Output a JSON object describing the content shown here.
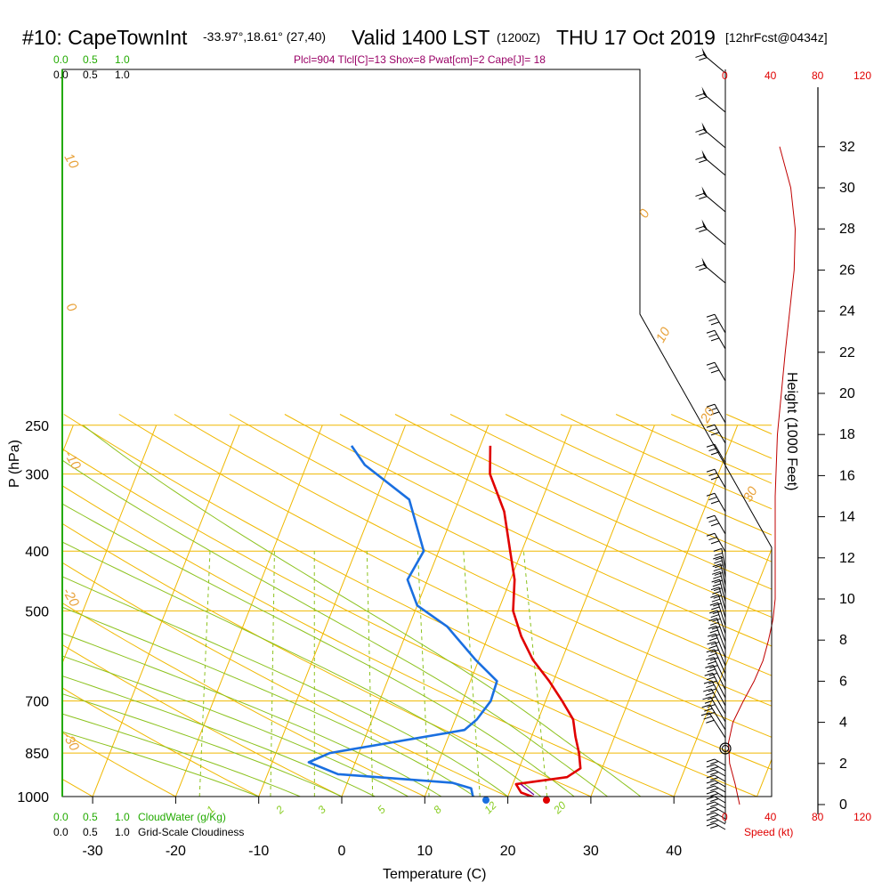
{
  "header": {
    "station": "#10: CapeTownInt",
    "coords": "-33.97°,18.61° (27,40)",
    "valid": "Valid 1400 LST",
    "zulu": "(1200Z)",
    "date": "THU 17 Oct 2019",
    "forecast": "[12hrFcst@0434z]",
    "indices": "Plcl=904 Tlcl[C]=13 Shox=8 Pwat[cm]=2 Cape[J]= 18"
  },
  "cloud_scale": {
    "green_ticks": [
      "0.0",
      "0.5",
      "1.0"
    ],
    "black_ticks": [
      "0.0",
      "0.5",
      "1.0"
    ],
    "cloudwater_label": "CloudWater (g/Kg)",
    "cloudiness_label": "Grid-Scale Cloudiness"
  },
  "speed_scale": {
    "ticks": [
      "0",
      "40",
      "80",
      "120"
    ],
    "label": "Speed (kt)"
  },
  "colors": {
    "isobar": "#f0b800",
    "isotherm": "#f0b800",
    "dry_adiabat": "#f0b800",
    "moist_adiabat": "#8cc21e",
    "mixing_ratio": "#8cc21e",
    "temperature": "#e00000",
    "dewpoint": "#1a6fe0",
    "wind_speed": "#c00000",
    "cloud_axis": "#22aa00"
  },
  "chart_data": {
    "type": "line",
    "title": "#10: CapeTownInt",
    "xlabel": "Temperature (C)",
    "ylabel": "P (hPa)",
    "y2label": "Height (1000 Feet)",
    "x_ticks": [
      -30,
      -20,
      -10,
      0,
      10,
      20,
      30,
      40
    ],
    "y_ticks": [
      250,
      300,
      400,
      500,
      700,
      850,
      1000
    ],
    "height_ticks": [
      0,
      2,
      4,
      6,
      8,
      10,
      12,
      14,
      16,
      18,
      20,
      22,
      24,
      26,
      28,
      30,
      32
    ],
    "isotherm_labels": [
      {
        "value": "10",
        "text": "10"
      },
      {
        "value": "0",
        "text": "0"
      },
      {
        "value": "-10",
        "text": "-10"
      },
      {
        "value": "-20",
        "text": "-20"
      },
      {
        "value": "-30",
        "text": "-30"
      },
      {
        "value": "0b",
        "text": "0"
      },
      {
        "value": "10b",
        "text": "10"
      },
      {
        "value": "20",
        "text": "20"
      },
      {
        "value": "30",
        "text": "30"
      }
    ],
    "mixing_ratio_labels": [
      "1",
      "2",
      "3",
      "5",
      "8",
      "12",
      "20"
    ],
    "series": [
      {
        "name": "Temperature",
        "points": [
          {
            "p": 270,
            "t": 1.2
          },
          {
            "p": 300,
            "t": 2.5
          },
          {
            "p": 345,
            "t": 6
          },
          {
            "p": 400,
            "t": 8.6
          },
          {
            "p": 445,
            "t": 10.5
          },
          {
            "p": 500,
            "t": 11.8
          },
          {
            "p": 550,
            "t": 14
          },
          {
            "p": 600,
            "t": 16.5
          },
          {
            "p": 650,
            "t": 19.5
          },
          {
            "p": 700,
            "t": 22
          },
          {
            "p": 750,
            "t": 24.2
          },
          {
            "p": 800,
            "t": 25.3
          },
          {
            "p": 850,
            "t": 26.5
          },
          {
            "p": 900,
            "t": 27.4
          },
          {
            "p": 930,
            "t": 26.2
          },
          {
            "p": 955,
            "t": 20.4
          },
          {
            "p": 985,
            "t": 21.4
          },
          {
            "p": 1005,
            "t": 23.4
          }
        ]
      },
      {
        "name": "Dewpoint",
        "points": [
          {
            "p": 270,
            "t": -15.5
          },
          {
            "p": 290,
            "t": -13
          },
          {
            "p": 330,
            "t": -6
          },
          {
            "p": 400,
            "t": -1.8
          },
          {
            "p": 445,
            "t": -2.4
          },
          {
            "p": 490,
            "t": 0
          },
          {
            "p": 530,
            "t": 4.6
          },
          {
            "p": 600,
            "t": 9.6
          },
          {
            "p": 650,
            "t": 13.2
          },
          {
            "p": 700,
            "t": 13.4
          },
          {
            "p": 750,
            "t": 12.6
          },
          {
            "p": 780,
            "t": 11.6
          },
          {
            "p": 850,
            "t": -3.5
          },
          {
            "p": 880,
            "t": -5.6
          },
          {
            "p": 920,
            "t": -1.5
          },
          {
            "p": 950,
            "t": 12.7
          },
          {
            "p": 970,
            "t": 15.2
          },
          {
            "p": 1000,
            "t": 15.8
          }
        ]
      },
      {
        "name": "Wind Speed",
        "points": [
          {
            "h": 0,
            "s": 12
          },
          {
            "h": 1,
            "s": 8
          },
          {
            "h": 2,
            "s": 3
          },
          {
            "h": 3,
            "s": 2
          },
          {
            "h": 4,
            "s": 6
          },
          {
            "h": 5,
            "s": 15
          },
          {
            "h": 6,
            "s": 25
          },
          {
            "h": 7,
            "s": 33
          },
          {
            "h": 8,
            "s": 38
          },
          {
            "h": 9,
            "s": 42
          },
          {
            "h": 10,
            "s": 44
          },
          {
            "h": 12,
            "s": 44
          },
          {
            "h": 15,
            "s": 44
          },
          {
            "h": 18,
            "s": 46
          },
          {
            "h": 22,
            "s": 53
          },
          {
            "h": 26,
            "s": 61
          },
          {
            "h": 28,
            "s": 62
          },
          {
            "h": 30,
            "s": 58
          },
          {
            "h": 32,
            "s": 48
          }
        ]
      }
    ],
    "surface_points": [
      {
        "name": "Surface Temperature",
        "t": 24.5,
        "p": 1005
      },
      {
        "name": "Surface Dewpoint",
        "t": 17.5,
        "p": 1004
      }
    ]
  }
}
